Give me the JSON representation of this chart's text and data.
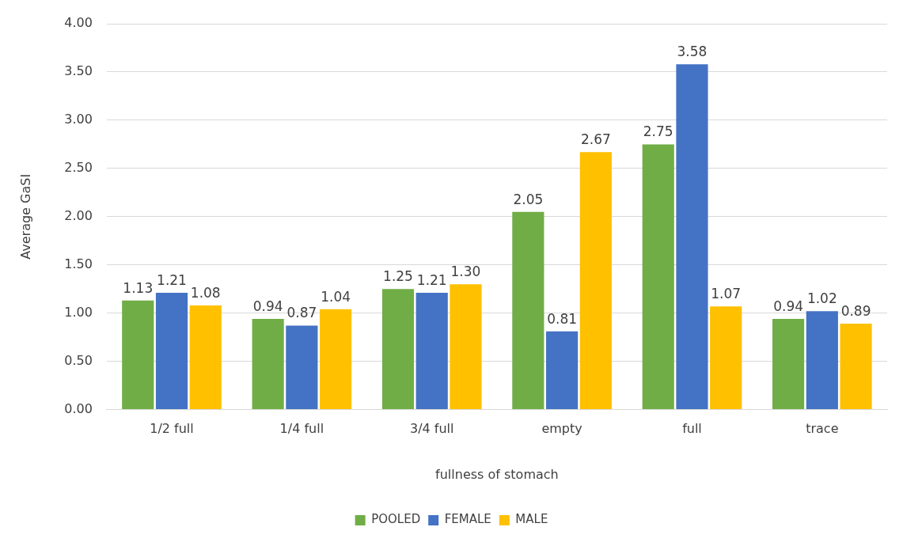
{
  "chart_data": {
    "type": "bar",
    "xlabel": "fullness of stomach",
    "ylabel": "Average GaSI",
    "categories": [
      "1/2 full",
      "1/4 full",
      "3/4 full",
      "empty",
      "full",
      "trace"
    ],
    "series": [
      {
        "name": "POOLED",
        "color": "#70ad47",
        "values": [
          1.13,
          0.94,
          1.25,
          2.05,
          2.75,
          0.94
        ],
        "value_labels": [
          "1.13",
          "0.94",
          "1.25",
          "2.05",
          "2.75",
          "0.94"
        ]
      },
      {
        "name": "FEMALE",
        "color": "#4472c4",
        "values": [
          1.21,
          0.87,
          1.21,
          0.81,
          3.58,
          1.02
        ],
        "value_labels": [
          "1.21",
          "0.87",
          "1.21",
          "0.81",
          "3.58",
          "1.02"
        ]
      },
      {
        "name": "MALE",
        "color": "#ffc000",
        "values": [
          1.08,
          1.04,
          1.3,
          2.67,
          1.07,
          0.89
        ],
        "value_labels": [
          "1.08",
          "1.04",
          "1.30",
          "2.67",
          "1.07",
          "0.89"
        ]
      }
    ],
    "ylim": [
      0,
      4
    ],
    "yticks": [
      {
        "value": 0,
        "label": "0.00"
      },
      {
        "value": 0.5,
        "label": "0.50"
      },
      {
        "value": 1,
        "label": "1.00"
      },
      {
        "value": 1.5,
        "label": "1.50"
      },
      {
        "value": 2,
        "label": "2.00"
      },
      {
        "value": 2.5,
        "label": "2.50"
      },
      {
        "value": 3,
        "label": "3.00"
      },
      {
        "value": 3.5,
        "label": "3.50"
      },
      {
        "value": 4,
        "label": "4.00"
      }
    ],
    "grid": "y",
    "legend": "bottom"
  }
}
